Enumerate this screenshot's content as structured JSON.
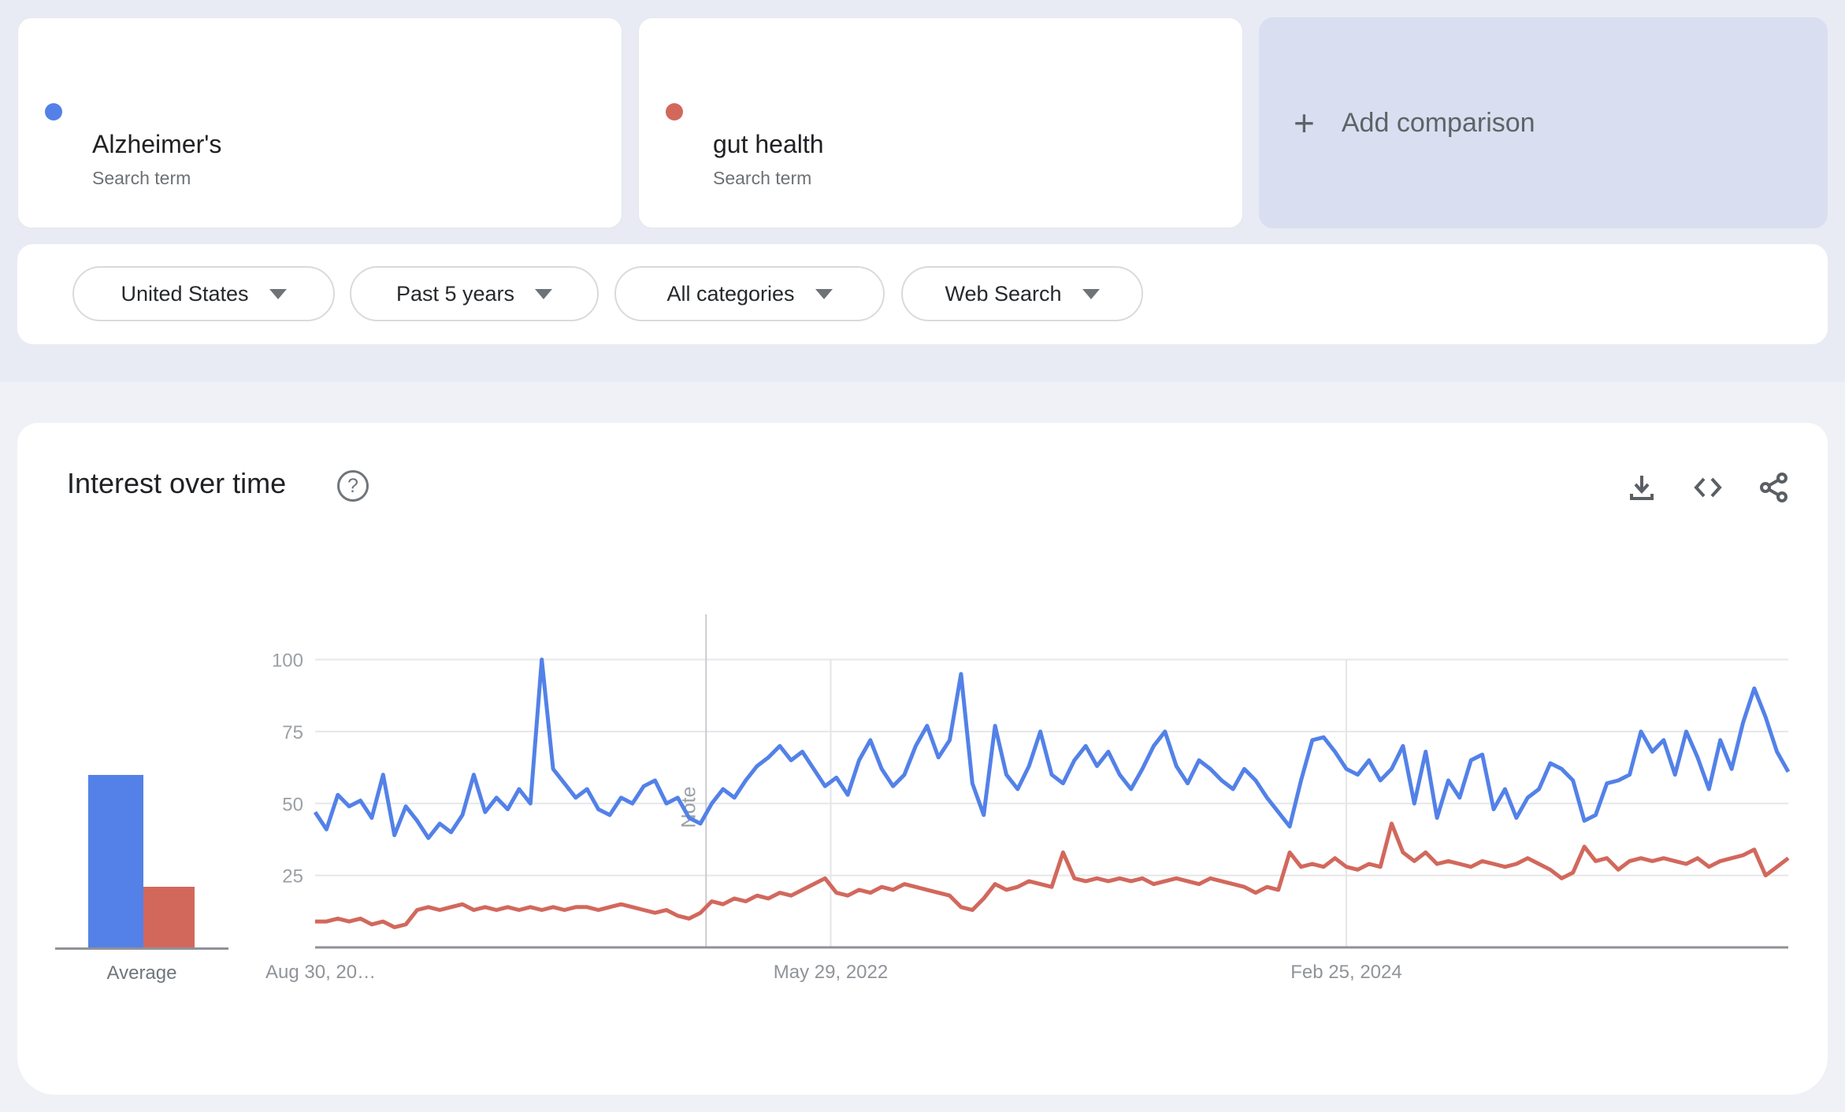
{
  "terms": [
    {
      "label": "Alzheimer's",
      "sublabel": "Search term",
      "color": "#5381e8"
    },
    {
      "label": "gut health",
      "sublabel": "Search term",
      "color": "#d2685c"
    }
  ],
  "add_comparison": {
    "plus": "+",
    "label": "Add comparison"
  },
  "filters": [
    {
      "label": "United States"
    },
    {
      "label": "Past 5 years"
    },
    {
      "label": "All categories"
    },
    {
      "label": "Web Search"
    }
  ],
  "panel": {
    "title": "Interest over time",
    "help_glyph": "?"
  },
  "icons": [
    "download-icon",
    "embed-code-icon",
    "share-icon"
  ],
  "chart_data": {
    "type": "line",
    "title": "Interest over time",
    "xlabel": "",
    "ylabel": "",
    "ylim": [
      0,
      100
    ],
    "grid": true,
    "legend_position": "none",
    "weeks_total": 260,
    "points_step_weeks": 2,
    "y_ticks": [
      25,
      50,
      75,
      100
    ],
    "x_ticks": [
      {
        "label": "Aug 30, 20…",
        "week": 0,
        "align": "start",
        "line": false
      },
      {
        "label": "May 29, 2022",
        "week": 91,
        "align": "middle",
        "line": true
      },
      {
        "label": "Feb 25, 2024",
        "week": 182,
        "align": "middle",
        "line": true
      }
    ],
    "note": {
      "label": "Note",
      "week": 69
    },
    "average_label": "Average",
    "series": [
      {
        "name": "Alzheimer's",
        "color": "#5381e8",
        "average": 60,
        "values": [
          47,
          41,
          53,
          49,
          51,
          45,
          60,
          39,
          49,
          44,
          38,
          43,
          40,
          46,
          60,
          47,
          52,
          48,
          55,
          50,
          100,
          62,
          57,
          52,
          55,
          48,
          46,
          52,
          50,
          56,
          58,
          50,
          52,
          45,
          43,
          50,
          55,
          52,
          58,
          63,
          66,
          70,
          65,
          68,
          62,
          56,
          59,
          53,
          65,
          72,
          62,
          56,
          60,
          70,
          77,
          66,
          72,
          95,
          57,
          46,
          77,
          60,
          55,
          63,
          75,
          60,
          57,
          65,
          70,
          63,
          68,
          60,
          55,
          62,
          70,
          75,
          63,
          57,
          65,
          62,
          58,
          55,
          62,
          58,
          52,
          47,
          42,
          58,
          72,
          73,
          68,
          62,
          60,
          65,
          58,
          62,
          70,
          50,
          68,
          45,
          58,
          52,
          65,
          67,
          48,
          55,
          45,
          52,
          55,
          64,
          62,
          58,
          44,
          46,
          57,
          58,
          60,
          75,
          68,
          72,
          60,
          75,
          66,
          55,
          72,
          62,
          78,
          90,
          80,
          68,
          61
        ]
      },
      {
        "name": "gut health",
        "color": "#d2685c",
        "average": 21,
        "values": [
          9,
          9,
          10,
          9,
          10,
          8,
          9,
          7,
          8,
          13,
          14,
          13,
          14,
          15,
          13,
          14,
          13,
          14,
          13,
          14,
          13,
          14,
          13,
          14,
          14,
          13,
          14,
          15,
          14,
          13,
          12,
          13,
          11,
          10,
          12,
          16,
          15,
          17,
          16,
          18,
          17,
          19,
          18,
          20,
          22,
          24,
          19,
          18,
          20,
          19,
          21,
          20,
          22,
          21,
          20,
          19,
          18,
          14,
          13,
          17,
          22,
          20,
          21,
          23,
          22,
          21,
          33,
          24,
          23,
          24,
          23,
          24,
          23,
          24,
          22,
          23,
          24,
          23,
          22,
          24,
          23,
          22,
          21,
          19,
          21,
          20,
          33,
          28,
          29,
          28,
          31,
          28,
          27,
          29,
          28,
          43,
          33,
          30,
          33,
          29,
          30,
          29,
          28,
          30,
          29,
          28,
          29,
          31,
          29,
          27,
          24,
          26,
          35,
          30,
          31,
          27,
          30,
          31,
          30,
          31,
          30,
          29,
          31,
          28,
          30,
          31,
          32,
          34,
          25,
          28,
          31
        ]
      }
    ]
  }
}
